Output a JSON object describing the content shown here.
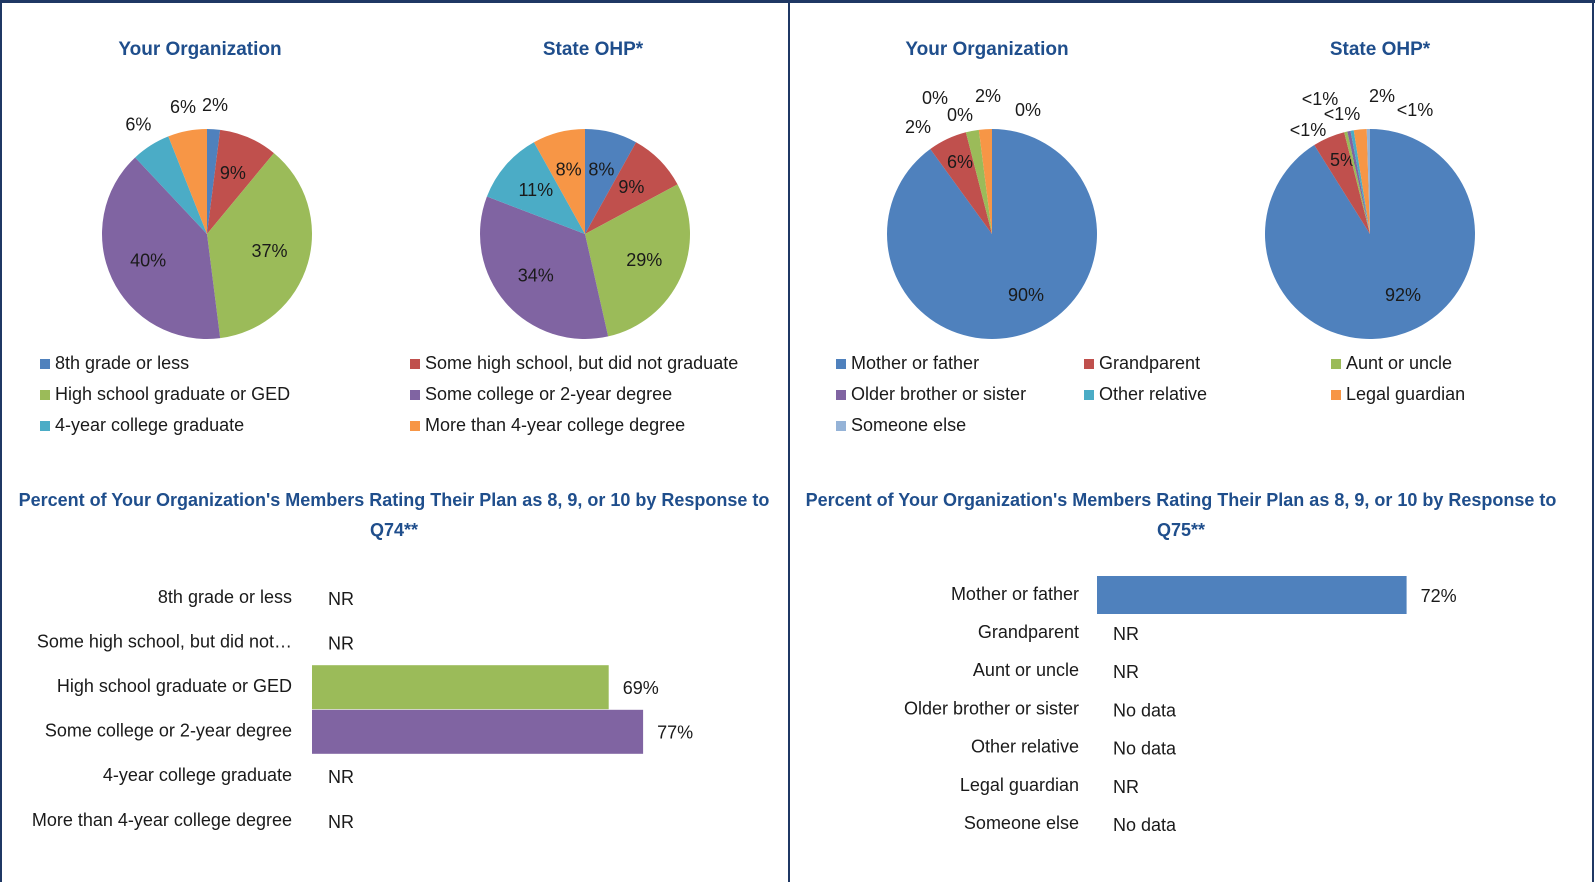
{
  "chart_data": [
    {
      "type": "pie",
      "title": "Your Organization",
      "categories": [
        "8th grade or less",
        "Some high school, but did not graduate",
        "High school graduate or GED",
        "Some college or 2-year degree",
        "4-year college graduate",
        "More than 4-year college degree"
      ],
      "colors": [
        "#4f81bd",
        "#c0504d",
        "#9bbb59",
        "#8064a2",
        "#4bacc6",
        "#f79646"
      ],
      "values": [
        2,
        9,
        37,
        40,
        6,
        6
      ],
      "value_labels": [
        "2%",
        "9%",
        "37%",
        "40%",
        "6%",
        "6%"
      ]
    },
    {
      "type": "pie",
      "title": "State OHP*",
      "values": [
        8,
        9,
        29,
        34,
        11,
        8
      ],
      "value_labels": [
        "8%",
        "9%",
        "29%",
        "34%",
        "11%",
        "8%"
      ]
    },
    {
      "type": "bar",
      "title": "Percent of Your Organization's Members Rating Their Plan as 8, 9, or 10 by Response to Q74**",
      "categories": [
        "8th grade or less",
        "Some high school, but did not…",
        "High school graduate or GED",
        "Some college or 2-year degree",
        "4-year college graduate",
        "More than 4-year college degree"
      ],
      "values": [
        null,
        null,
        69,
        77,
        null,
        null
      ],
      "value_labels": [
        "NR",
        "NR",
        "69%",
        "77%",
        "NR",
        "NR"
      ],
      "xlim": [
        0,
        100
      ]
    },
    {
      "type": "pie",
      "title": "Your Organization",
      "categories": [
        "Mother or father",
        "Grandparent",
        "Aunt or uncle",
        "Older brother or sister",
        "Other relative",
        "Legal guardian",
        "Someone else"
      ],
      "colors": [
        "#4f81bd",
        "#c0504d",
        "#9bbb59",
        "#8064a2",
        "#4bacc6",
        "#f79646",
        "#95b3d7"
      ],
      "values": [
        90,
        6,
        2,
        0,
        0,
        2,
        0
      ],
      "value_labels": [
        "90%",
        "6%",
        "2%",
        "0%",
        "0%",
        "2%",
        "0%"
      ]
    },
    {
      "type": "pie",
      "title": "State OHP*",
      "values": [
        92,
        5,
        0.5,
        0.5,
        0.5,
        2,
        0.5
      ],
      "value_labels": [
        "92%",
        "5%",
        "<1%",
        "<1%",
        "<1%",
        "2%",
        "<1%"
      ]
    },
    {
      "type": "bar",
      "title": "Percent of Your Organization's Members Rating Their Plan as 8, 9, or 10 by Response to Q75**",
      "categories": [
        "Mother or father",
        "Grandparent",
        "Aunt or uncle",
        "Older brother or sister",
        "Other relative",
        "Legal guardian",
        "Someone else"
      ],
      "values": [
        72,
        null,
        null,
        null,
        null,
        null,
        null
      ],
      "value_labels": [
        "72%",
        "NR",
        "NR",
        "No data",
        "No data",
        "NR",
        "No data"
      ],
      "xlim": [
        0,
        100
      ]
    }
  ]
}
